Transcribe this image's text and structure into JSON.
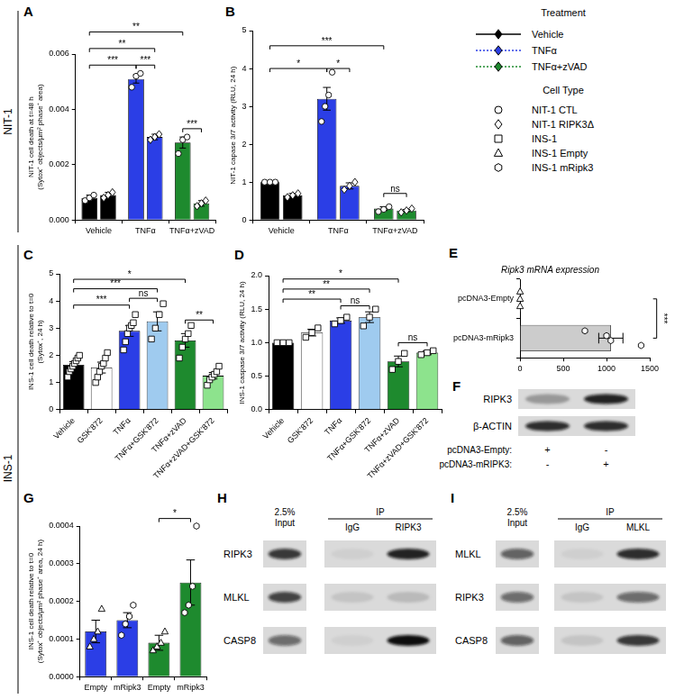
{
  "row_labels": [
    "NIT-1",
    "INS-1"
  ],
  "key": {
    "treatment": {
      "title": "Treatment",
      "items": [
        {
          "name": "Vehicle",
          "color": "#000000",
          "line_style": "solid",
          "marker": "diamond"
        },
        {
          "name": "TNFα",
          "color": "#2b3ee6",
          "line_style": "dotted",
          "marker": "diamond"
        },
        {
          "name": "TNFα+zVAD",
          "color": "#1e8a2e",
          "line_style": "dotted",
          "marker": "diamond"
        }
      ]
    },
    "cell_type": {
      "title": "Cell Type",
      "items": [
        {
          "name": "NIT-1 CTL",
          "marker": "circle"
        },
        {
          "name": "NIT-1 RIPK3Δ",
          "marker": "diamond"
        },
        {
          "name": "INS-1",
          "marker": "square"
        },
        {
          "name": "INS-1 Empty",
          "marker": "triangle"
        },
        {
          "name": "INS-1 mRipk3",
          "marker": "hexagon"
        }
      ]
    }
  },
  "chart_data": [
    {
      "panel": "A",
      "type": "bar",
      "y_label": [
        "NIT-1 cell death at t=48 h",
        "(Sytox⁺ objects/µm² phase⁺ area)"
      ],
      "categories": [
        "Vehicle",
        "TNFα",
        "TNFα+zVAD"
      ],
      "series": [
        {
          "name": "NIT-1 CTL",
          "marker": "circle",
          "colors": [
            "#000000",
            "#2b3ee6",
            "#1e8a2e"
          ],
          "values": [
            0.0008,
            0.0051,
            0.0028
          ],
          "errors": [
            0.0001,
            0.00015,
            0.0002
          ],
          "points": [
            [
              0.0007,
              0.0008,
              0.0009
            ],
            [
              0.0048,
              0.0052,
              0.0053
            ],
            [
              0.0024,
              0.0029,
              0.003
            ]
          ]
        },
        {
          "name": "NIT-1 RIPK3Δ",
          "marker": "diamond",
          "colors": [
            "#000000",
            "#2b3ee6",
            "#1e8a2e"
          ],
          "values": [
            0.0009,
            0.003,
            0.0006
          ],
          "errors": [
            0.0001,
            0.0001,
            0.0001
          ],
          "points": [
            [
              0.0008,
              0.0009,
              0.001
            ],
            [
              0.0029,
              0.003,
              0.0031
            ],
            [
              0.0005,
              0.0006,
              0.0007
            ]
          ]
        }
      ],
      "ylim": [
        0,
        0.006
      ],
      "yticks": [
        {
          "value": 0,
          "label": "0.000"
        },
        0.002,
        0.004,
        0.006
      ],
      "grid": false,
      "annotations": [
        {
          "from": [
            0,
            0
          ],
          "to": [
            2,
            0
          ],
          "label": "**",
          "at": 0.0068
        },
        {
          "from": [
            0,
            0
          ],
          "to": [
            1,
            1
          ],
          "label": "**",
          "at": 0.0062
        },
        {
          "from": [
            0,
            0
          ],
          "to": [
            1,
            0
          ],
          "label": "***",
          "at": 0.0056
        },
        {
          "from": [
            1,
            0
          ],
          "to": [
            1,
            1
          ],
          "label": "***",
          "at": 0.0056
        },
        {
          "from": [
            2,
            0
          ],
          "to": [
            2,
            1
          ],
          "label": "***",
          "at": 0.0033
        }
      ]
    },
    {
      "panel": "B",
      "type": "bar",
      "y_label": "NIT-1 capase 3/7 activity (RLU, 24 h)",
      "categories": [
        "Vehicle",
        "TNFα",
        "TNFα+zVAD"
      ],
      "series": [
        {
          "name": "NIT-1 CTL",
          "marker": "circle",
          "colors": [
            "#000000",
            "#2b3ee6",
            "#1e8a2e"
          ],
          "values": [
            1.0,
            3.2,
            0.3
          ],
          "errors": [
            0.03,
            0.3,
            0.05
          ],
          "points": [
            [
              1.0,
              1.0,
              1.0
            ],
            [
              2.6,
              3.0,
              3.3,
              3.9
            ],
            [
              0.22,
              0.28,
              0.35
            ]
          ]
        },
        {
          "name": "NIT-1 RIPK3Δ",
          "marker": "diamond",
          "colors": [
            "#000000",
            "#2b3ee6",
            "#1e8a2e"
          ],
          "values": [
            0.65,
            0.9,
            0.25
          ],
          "errors": [
            0.05,
            0.08,
            0.03
          ],
          "points": [
            [
              0.6,
              0.65,
              0.7
            ],
            [
              0.8,
              0.9,
              1.0
            ],
            [
              0.2,
              0.25,
              0.3
            ]
          ]
        }
      ],
      "ylim": [
        0,
        5
      ],
      "yticks": [
        0,
        1,
        2,
        3,
        4,
        5
      ],
      "grid": false,
      "annotations": [
        {
          "from": [
            0,
            0
          ],
          "to": [
            2,
            0
          ],
          "label": "***",
          "at": 4.6
        },
        {
          "from": [
            0,
            0
          ],
          "to": [
            1,
            0
          ],
          "label": "*",
          "at": 4.0
        },
        {
          "from": [
            1,
            0
          ],
          "to": [
            1,
            1
          ],
          "label": "*",
          "at": 4.0
        },
        {
          "from": [
            2,
            0
          ],
          "to": [
            2,
            1
          ],
          "label": "ns",
          "at": 0.7
        }
      ]
    },
    {
      "panel": "C",
      "type": "bar",
      "y_label": [
        "INS-1 cell death relative to t=0",
        "(Sytox⁺, 24 h)"
      ],
      "categories": [
        "Vehicle",
        "GSK'872",
        "TNFα",
        "TNFα+GSK'872",
        "TNFα+zVAD",
        "TNFα+zVAD+GSK'872"
      ],
      "series": [
        {
          "name": "INS-1",
          "marker": "square",
          "colors": [
            "#000000",
            "#ffffff",
            "#2b3ee6",
            "#9fcbef",
            "#1e8a2e",
            "#8de38d"
          ],
          "values": [
            1.65,
            1.55,
            2.9,
            3.25,
            2.55,
            1.25
          ],
          "errors": [
            0.12,
            0.2,
            0.2,
            0.35,
            0.25,
            0.12
          ],
          "points": [
            [
              1.2,
              1.4,
              1.5,
              1.6,
              1.7,
              1.8,
              1.9,
              2.0
            ],
            [
              1.0,
              1.2,
              1.4,
              1.6,
              1.7,
              1.9,
              2.1
            ],
            [
              2.2,
              2.5,
              2.8,
              3.0,
              3.1,
              3.2,
              3.5
            ],
            [
              2.6,
              3.0,
              3.5,
              3.9
            ],
            [
              1.9,
              2.3,
              2.6,
              2.8,
              3.1
            ],
            [
              0.9,
              1.1,
              1.2,
              1.3,
              1.4,
              1.6
            ]
          ]
        }
      ],
      "ylim": [
        0,
        5
      ],
      "yticks": [
        0,
        1,
        2,
        3,
        4,
        5
      ],
      "grid": false,
      "annotations": [
        {
          "from": [
            0,
            0
          ],
          "to": [
            4,
            0
          ],
          "label": "*",
          "at": 4.8
        },
        {
          "from": [
            0,
            0
          ],
          "to": [
            3,
            0
          ],
          "label": "***",
          "at": 4.45
        },
        {
          "from": [
            2,
            0
          ],
          "to": [
            3,
            0
          ],
          "label": "ns",
          "at": 4.1
        },
        {
          "from": [
            0,
            0
          ],
          "to": [
            2,
            0
          ],
          "label": "***",
          "at": 3.85
        },
        {
          "from": [
            4,
            0
          ],
          "to": [
            5,
            0
          ],
          "label": "**",
          "at": 3.3
        }
      ]
    },
    {
      "panel": "D",
      "type": "bar",
      "y_label": "INS-1 caspase 3/7 activity (RLU, 24 h)",
      "categories": [
        "Vehicle",
        "GSK'872",
        "TNFα",
        "TNFα+GSK'872",
        "TNFα+zVAD",
        "TNFα+zVAD+GSK'872"
      ],
      "series": [
        {
          "name": "INS-1",
          "marker": "square",
          "colors": [
            "#000000",
            "#ffffff",
            "#2b3ee6",
            "#9fcbef",
            "#1e8a2e",
            "#8de38d"
          ],
          "values": [
            1.0,
            1.15,
            1.33,
            1.38,
            0.72,
            0.85
          ],
          "errors": [
            0.01,
            0.05,
            0.04,
            0.08,
            0.08,
            0.03
          ],
          "points": [
            [
              1.0,
              1.0,
              1.0
            ],
            [
              1.08,
              1.15,
              1.22
            ],
            [
              1.28,
              1.33,
              1.38
            ],
            [
              1.25,
              1.38,
              1.5
            ],
            [
              0.6,
              0.72,
              0.84
            ],
            [
              0.82,
              0.85,
              0.88
            ]
          ]
        }
      ],
      "ylim": [
        0,
        2
      ],
      "yticks": [
        {
          "value": 0,
          "label": "0.0"
        },
        0.5,
        {
          "value": 1,
          "label": "1.0"
        },
        1.5,
        {
          "value": 2,
          "label": "2.0"
        }
      ],
      "grid": false,
      "annotations": [
        {
          "from": [
            0,
            0
          ],
          "to": [
            4,
            0
          ],
          "label": "*",
          "at": 1.95
        },
        {
          "from": [
            0,
            0
          ],
          "to": [
            3,
            0
          ],
          "label": "**",
          "at": 1.8
        },
        {
          "from": [
            0,
            0
          ],
          "to": [
            2,
            0
          ],
          "label": "**",
          "at": 1.65
        },
        {
          "from": [
            2,
            0
          ],
          "to": [
            3,
            0
          ],
          "label": "ns",
          "at": 1.55
        },
        {
          "from": [
            4,
            0
          ],
          "to": [
            5,
            0
          ],
          "label": "ns",
          "at": 1.0
        }
      ]
    },
    {
      "panel": "E",
      "type": "bar",
      "orientation": "horizontal",
      "title": "Ripk3 mRNA expression",
      "categories": [
        "pcDNA3-Empty",
        "pcDNA3-mRipk3"
      ],
      "series": [
        {
          "name": "INS-1 Empty",
          "marker": "triangle",
          "colors": [
            "#ffffff",
            "#ffffff"
          ],
          "values": [
            1,
            null
          ],
          "points": [
            [
              1,
              1,
              1
            ],
            null
          ]
        },
        {
          "name": "INS-1 mRipk3",
          "marker": "hexagon",
          "colors": [
            "#cccccc",
            "#cccccc"
          ],
          "values": [
            null,
            1050
          ],
          "errors": [
            null,
            140
          ],
          "points": [
            null,
            [
              750,
              1000,
              1050,
              1400
            ]
          ]
        }
      ],
      "xlim": [
        0,
        1500
      ],
      "xticks": [
        0,
        500,
        1000,
        1500
      ],
      "grid": false,
      "annotations": [
        {
          "from": [
            0,
            0
          ],
          "to": [
            1,
            1
          ],
          "label": "***",
          "at": 1580
        }
      ]
    },
    {
      "panel": "G",
      "type": "bar",
      "y_label": [
        "INS-1 cell death relative to t=0",
        "(Sytox⁺ objects/µm² phase⁺ area, 24 h)"
      ],
      "categories": [
        "Empty",
        "mRipk3",
        "Empty",
        "mRipk3"
      ],
      "series": [
        {
          "name": "INS-1 Empty",
          "marker": "triangle",
          "colors": [
            "#2b3ee6",
            "#2b3ee6",
            "#1e8a2e",
            "#1e8a2e"
          ],
          "values": [
            0.00012,
            null,
            9e-05,
            null
          ],
          "errors": [
            3e-05,
            null,
            2e-05,
            null
          ],
          "points": [
            [
              8e-05,
              0.0001,
              0.00012,
              0.00018
            ],
            null,
            [
              7e-05,
              8e-05,
              9e-05,
              0.00012
            ],
            null
          ]
        },
        {
          "name": "INS-1 mRipk3",
          "marker": "hexagon",
          "colors": [
            "#2b3ee6",
            "#2b3ee6",
            "#1e8a2e",
            "#1e8a2e"
          ],
          "values": [
            null,
            0.00015,
            null,
            0.00025
          ],
          "errors": [
            null,
            2e-05,
            null,
            6e-05
          ],
          "points": [
            null,
            [
              0.00011,
              0.00014,
              0.00016,
              0.00019
            ],
            null,
            [
              0.00017,
              0.00019,
              0.00024,
              0.0004
            ]
          ]
        }
      ],
      "ylim": [
        0,
        0.0004
      ],
      "yticks": [
        {
          "value": 0,
          "label": "0.0000"
        },
        0.0001,
        0.0002,
        0.0003,
        0.0004
      ],
      "grid": false,
      "annotations": [
        {
          "from": [
            2,
            0
          ],
          "to": [
            3,
            1
          ],
          "label": "*",
          "at": 0.00042
        }
      ]
    }
  ],
  "blots": [
    {
      "panel": "F",
      "rows": [
        {
          "label": "RIPK3",
          "bands": [
            0.3,
            0.9
          ]
        },
        {
          "label": "β-ACTIN",
          "bands": [
            0.85,
            0.85
          ]
        }
      ],
      "conditions": [
        {
          "label": "pcDNA3-Empty:",
          "values": [
            "+",
            "-"
          ]
        },
        {
          "label": "pcDNA3-mRIPK3:",
          "values": [
            "-",
            "+"
          ]
        }
      ]
    },
    {
      "panel": "H",
      "input_label": [
        "2.5%",
        "Input"
      ],
      "ip_label": "IP",
      "ip_lanes": [
        "IgG",
        "RIPK3"
      ],
      "rows": [
        {
          "label": "RIPK3",
          "bands": [
            0.8,
            0.05,
            0.9
          ]
        },
        {
          "label": "MLKL",
          "bands": [
            0.75,
            0.1,
            0.15
          ]
        },
        {
          "label": "CASP8",
          "bands": [
            0.55,
            0.05,
            1.0
          ]
        }
      ]
    },
    {
      "panel": "I",
      "input_label": [
        "2.5%",
        "Input"
      ],
      "ip_label": "IP",
      "ip_lanes": [
        "IgG",
        "MLKL"
      ],
      "rows": [
        {
          "label": "MLKL",
          "bands": [
            0.6,
            0.05,
            0.85
          ]
        },
        {
          "label": "RIPK3",
          "bands": [
            0.55,
            0.1,
            0.55
          ]
        },
        {
          "label": "CASP8",
          "bands": [
            0.6,
            0.1,
            0.8
          ]
        }
      ]
    }
  ]
}
